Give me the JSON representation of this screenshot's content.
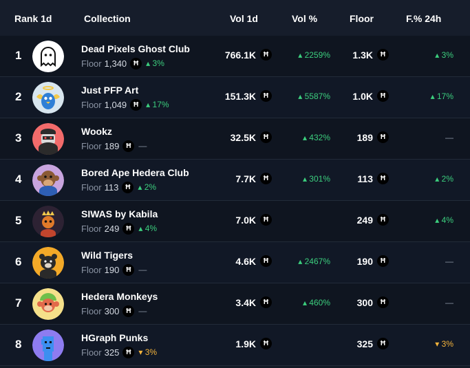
{
  "header": {
    "rank": "Rank 1d",
    "collection": "Collection",
    "vol": "Vol 1d",
    "volp": "Vol %",
    "floor": "Floor",
    "f24": "F.% 24h"
  },
  "currency_symbol": "Ħ",
  "rows": [
    {
      "rank": "1",
      "name": "Dead Pixels Ghost Club",
      "floor_label": "Floor",
      "floor_value": "1,340",
      "floor_change": "3%",
      "floor_change_dir": "up",
      "vol": "766.1K",
      "vol_pct": "2259%",
      "floor_short": "1.3K",
      "f24": "3%",
      "f24_dir": "up"
    },
    {
      "rank": "2",
      "name": "Just PFP Art",
      "floor_label": "Floor",
      "floor_value": "1,049",
      "floor_change": "17%",
      "floor_change_dir": "up",
      "vol": "151.3K",
      "vol_pct": "5587%",
      "floor_short": "1.0K",
      "f24": "17%",
      "f24_dir": "up"
    },
    {
      "rank": "3",
      "name": "Wookz",
      "floor_label": "Floor",
      "floor_value": "189",
      "floor_change": "—",
      "floor_change_dir": "none",
      "vol": "32.5K",
      "vol_pct": "432%",
      "floor_short": "189",
      "f24": "—",
      "f24_dir": "none"
    },
    {
      "rank": "4",
      "name": "Bored Ape Hedera Club",
      "floor_label": "Floor",
      "floor_value": "113",
      "floor_change": "2%",
      "floor_change_dir": "up",
      "vol": "7.7K",
      "vol_pct": "301%",
      "floor_short": "113",
      "f24": "2%",
      "f24_dir": "up"
    },
    {
      "rank": "5",
      "name": "SIWAS by Kabila",
      "floor_label": "Floor",
      "floor_value": "249",
      "floor_change": "4%",
      "floor_change_dir": "up",
      "vol": "7.0K",
      "vol_pct": "",
      "floor_short": "249",
      "f24": "4%",
      "f24_dir": "up"
    },
    {
      "rank": "6",
      "name": "Wild Tigers",
      "floor_label": "Floor",
      "floor_value": "190",
      "floor_change": "—",
      "floor_change_dir": "none",
      "vol": "4.6K",
      "vol_pct": "2467%",
      "floor_short": "190",
      "f24": "—",
      "f24_dir": "none"
    },
    {
      "rank": "7",
      "name": "Hedera Monkeys",
      "floor_label": "Floor",
      "floor_value": "300",
      "floor_change": "—",
      "floor_change_dir": "none",
      "vol": "3.4K",
      "vol_pct": "460%",
      "floor_short": "300",
      "f24": "—",
      "f24_dir": "none"
    },
    {
      "rank": "8",
      "name": "HGraph Punks",
      "floor_label": "Floor",
      "floor_value": "325",
      "floor_change": "3%",
      "floor_change_dir": "down",
      "vol": "1.9K",
      "vol_pct": "",
      "floor_short": "325",
      "f24": "3%",
      "f24_dir": "down"
    }
  ],
  "avatars": [
    {
      "icon": "ghost-icon",
      "bg": "#ffffff",
      "fg": "#111111"
    },
    {
      "icon": "blue-bird-angel-icon",
      "bg": "#d8e6ef",
      "fg": "#2f7fd6"
    },
    {
      "icon": "robot-cap-icon",
      "bg": "#f36b6b",
      "fg": "#3a3a3a"
    },
    {
      "icon": "ape-icon",
      "bg": "#c8a4de",
      "fg": "#8a5a34"
    },
    {
      "icon": "crowned-character-icon",
      "bg": "#2d2233",
      "fg": "#e07a2a"
    },
    {
      "icon": "tiger-icon",
      "bg": "#f3a928",
      "fg": "#2a2a2a"
    },
    {
      "icon": "monkey-icon",
      "bg": "#f5e08a",
      "fg": "#e26a4a"
    },
    {
      "icon": "pixel-punk-icon",
      "bg": "#8e7cf0",
      "fg": "#3c8ff0"
    }
  ],
  "colors": {
    "up": "#3ccf7e",
    "down": "#f5b43c",
    "bg": "#131a26",
    "header": "#161d2b"
  }
}
